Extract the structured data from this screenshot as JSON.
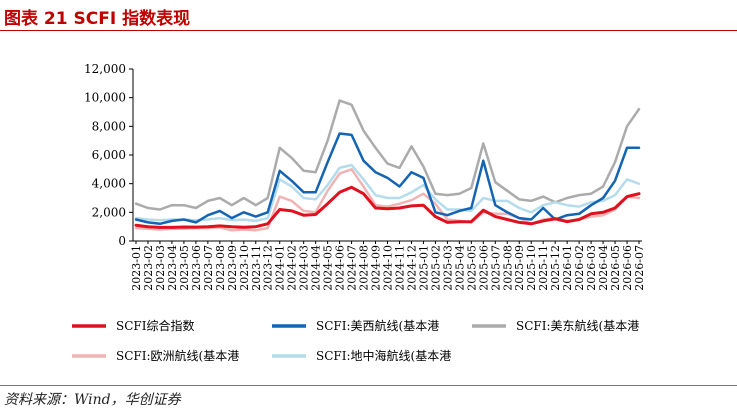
{
  "header": {
    "title": "图表 21    SCFI 指数表现"
  },
  "footer": {
    "source": "资料来源：Wind，华创证券"
  },
  "chart_data": {
    "type": "line",
    "ylim": [
      0,
      12000
    ],
    "yticks": [
      0,
      2000,
      4000,
      6000,
      8000,
      10000,
      12000
    ],
    "ytick_labels": [
      "0",
      "2,000",
      "4,000",
      "6,000",
      "8,000",
      "10,000",
      "12,000"
    ],
    "x": [
      "2023-01",
      "2023-02",
      "2023-03",
      "2023-04",
      "2023-05",
      "2023-06",
      "2023-07",
      "2023-08",
      "2023-09",
      "2023-10",
      "2023-11",
      "2023-12",
      "2024-01",
      "2024-02",
      "2024-03",
      "2024-04",
      "2024-05",
      "2024-06",
      "2024-07",
      "2024-08",
      "2024-09",
      "2024-10",
      "2024-11",
      "2024-12",
      "2025-01",
      "2025-02",
      "2025-03",
      "2025-04",
      "2025-05",
      "2025-06",
      "2025-07",
      "2025-08",
      "2025-09",
      "2025-10",
      "2025-11",
      "2025-12",
      "2026-01",
      "2026-02",
      "2026-03",
      "2026-04",
      "2026-05",
      "2026-06",
      "2026-07"
    ],
    "legend_position": "bottom",
    "series": [
      {
        "name": "SCFI综合指数",
        "color": "#e0101f",
        "width": 3,
        "values": [
          1100,
          1000,
          950,
          950,
          980,
          970,
          1000,
          1050,
          1000,
          960,
          1000,
          1200,
          2200,
          2100,
          1800,
          1850,
          2600,
          3400,
          3750,
          3300,
          2300,
          2250,
          2300,
          2450,
          2500,
          1700,
          1300,
          1350,
          1350,
          2150,
          1700,
          1500,
          1300,
          1200,
          1400,
          1550,
          1350,
          1500,
          1900,
          2000,
          2300,
          3100,
          3300
        ]
      },
      {
        "name": "SCFI:美西航线(基本港",
        "color": "#1464b4",
        "width": 2.5,
        "values": [
          1500,
          1300,
          1200,
          1400,
          1500,
          1300,
          1800,
          2100,
          1600,
          2000,
          1700,
          2000,
          4900,
          4200,
          3400,
          3400,
          5500,
          7500,
          7400,
          5600,
          4800,
          4400,
          3800,
          4800,
          4400,
          2000,
          1800,
          2100,
          2300,
          5600,
          2500,
          2000,
          1600,
          1500,
          2300,
          1500,
          1800,
          1900,
          2500,
          3000,
          4200,
          6500,
          6500
        ]
      },
      {
        "name": "SCFI:美东航线(基本港",
        "color": "#ababab",
        "width": 2.5,
        "values": [
          2600,
          2300,
          2200,
          2500,
          2500,
          2300,
          2800,
          3000,
          2500,
          3000,
          2500,
          3000,
          6500,
          5800,
          4900,
          4800,
          7000,
          9800,
          9500,
          7700,
          6500,
          5400,
          5100,
          6600,
          5200,
          3300,
          3200,
          3300,
          3700,
          6800,
          4100,
          3500,
          2900,
          2800,
          3100,
          2700,
          3000,
          3200,
          3300,
          3800,
          5500,
          8000,
          9200
        ]
      },
      {
        "name": "SCFI:欧洲航线(基本港",
        "color": "#f0b4b4",
        "width": 2.5,
        "values": [
          900,
          850,
          800,
          850,
          850,
          900,
          900,
          950,
          750,
          800,
          750,
          900,
          3100,
          2800,
          2100,
          2000,
          3500,
          4700,
          5000,
          3800,
          2500,
          2400,
          2600,
          2850,
          3300,
          2600,
          1500,
          1400,
          1300,
          2000,
          1900,
          1900,
          1600,
          1200,
          1500,
          1600,
          1400,
          1500,
          1700,
          1800,
          2200,
          3100,
          3000
        ]
      },
      {
        "name": "SCFI:地中海航线(基本港",
        "color": "#b4dceb",
        "width": 2.5,
        "values": [
          1600,
          1500,
          1450,
          1500,
          1500,
          1450,
          1500,
          1600,
          1450,
          1500,
          1400,
          1600,
          4300,
          3800,
          3000,
          2900,
          3900,
          5100,
          5300,
          4300,
          3200,
          3000,
          3000,
          3400,
          3900,
          2900,
          2200,
          2200,
          2100,
          3000,
          2800,
          2800,
          2300,
          2000,
          2500,
          2700,
          2500,
          2400,
          2700,
          2800,
          3200,
          4300,
          4000
        ]
      }
    ]
  }
}
